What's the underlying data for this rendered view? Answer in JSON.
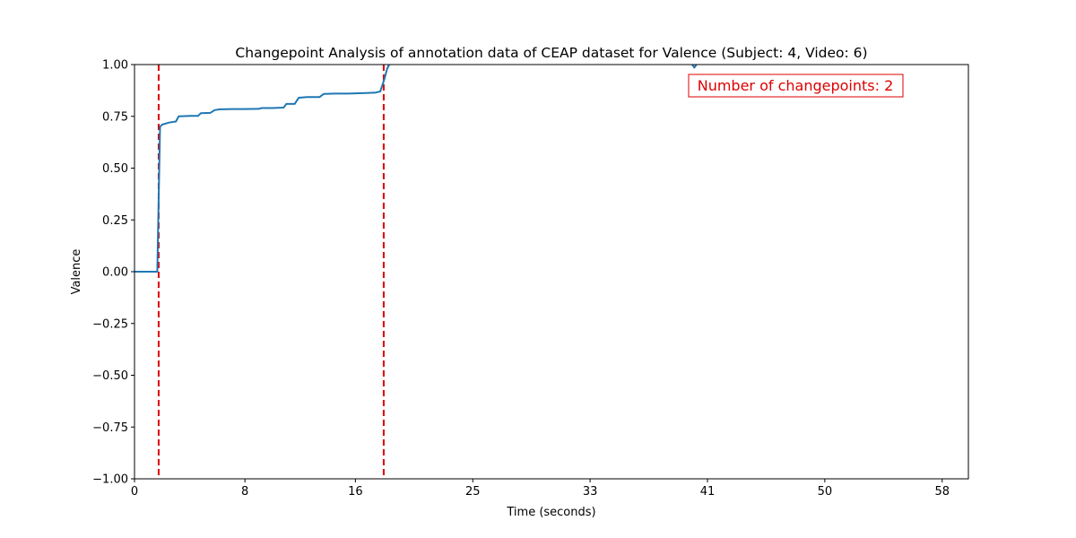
{
  "chart_data": {
    "type": "line",
    "title": "Changepoint Analysis of annotation data of CEAP dataset for Valence (Subject: 4, Video: 6)",
    "xlabel": "Time (seconds)",
    "ylabel": "Valence",
    "xlim": [
      0,
      60.4
    ],
    "ylim": [
      -1.0,
      1.0
    ],
    "x_ticks": [
      0,
      8,
      16,
      24.5,
      33,
      41.5,
      50,
      58.5
    ],
    "x_tick_labels": [
      "0",
      "8",
      "16",
      "25",
      "33",
      "41",
      "50",
      "58"
    ],
    "y_ticks": [
      -1.0,
      -0.75,
      -0.5,
      -0.25,
      0.0,
      0.25,
      0.5,
      0.75,
      1.0
    ],
    "y_tick_labels": [
      "−1.00",
      "−0.75",
      "−0.50",
      "−0.25",
      "0.00",
      "0.25",
      "0.50",
      "0.75",
      "1.00"
    ],
    "grid": false,
    "series": [
      {
        "color": "#1f77b4",
        "x": [
          0.0,
          1.65,
          1.75,
          1.85,
          2.0,
          2.5,
          3.0,
          3.2,
          4.0,
          4.6,
          4.8,
          5.5,
          5.8,
          6.2,
          7.0,
          8.0,
          9.0,
          9.2,
          10.0,
          10.8,
          11.0,
          11.6,
          11.9,
          12.5,
          13.4,
          13.7,
          14.5,
          15.5,
          16.5,
          17.4,
          17.8,
          18.1,
          18.3,
          18.6
        ],
        "y": [
          0.0,
          0.0,
          0.35,
          0.7,
          0.71,
          0.72,
          0.725,
          0.75,
          0.752,
          0.752,
          0.765,
          0.767,
          0.78,
          0.784,
          0.785,
          0.785,
          0.786,
          0.79,
          0.79,
          0.792,
          0.81,
          0.81,
          0.84,
          0.843,
          0.843,
          0.858,
          0.86,
          0.86,
          0.862,
          0.864,
          0.87,
          0.93,
          0.98,
          1.02
        ]
      },
      {
        "color": "#1f77b4",
        "x": [
          40.4,
          40.55,
          40.7
        ],
        "y": [
          1.0,
          0.985,
          1.0
        ]
      }
    ],
    "changepoints": [
      1.75,
      18.05
    ],
    "changepoint_color": "#dd0000",
    "annotation": {
      "text": "Number of changepoints: 2",
      "color": "#dd0000",
      "placement": "top-right"
    }
  }
}
